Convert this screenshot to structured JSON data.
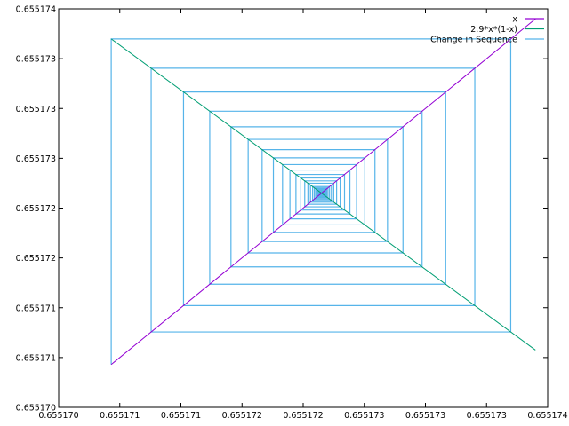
{
  "chart_data": {
    "type": "line",
    "title": "",
    "xlabel": "",
    "ylabel": "",
    "xlim": [
      0.65517,
      0.655174
    ],
    "ylim": [
      0.65517,
      0.655174
    ],
    "x_ticks": {
      "values": [
        0.65517,
        0.6551705,
        0.655171,
        0.6551715,
        0.655172,
        0.6551725,
        0.655173,
        0.6551735,
        0.655174
      ],
      "labels": [
        "0.655170",
        "0.655171",
        "0.655171",
        "0.655172",
        "0.655172",
        "0.655173",
        "0.655173",
        "0.655173",
        "0.655174"
      ]
    },
    "y_ticks": {
      "values": [
        0.65517,
        0.6551705,
        0.655171,
        0.6551715,
        0.655172,
        0.6551725,
        0.655173,
        0.6551735,
        0.655174
      ],
      "labels": [
        "0.655170",
        "0.655171",
        "0.655171",
        "0.655172",
        "0.655172",
        "0.655173",
        "0.655173",
        "0.655173",
        "0.655174"
      ]
    },
    "grid": false,
    "legend_position": "top-right",
    "series": [
      {
        "name": "x",
        "color": "#9400d3",
        "kind": "function",
        "x_range": [
          0.65517043,
          0.6551739
        ]
      },
      {
        "name": "2.9*x*(1-x)",
        "color": "#009e73",
        "kind": "function",
        "x_range": [
          0.65517043,
          0.6551739
        ]
      },
      {
        "name": "Change in Sequence",
        "color": "#56b4e9",
        "kind": "cobweb",
        "x0": 0.65517043,
        "fixed_point": 0.65517215,
        "multiplier": -0.9,
        "steps": 80
      }
    ]
  }
}
